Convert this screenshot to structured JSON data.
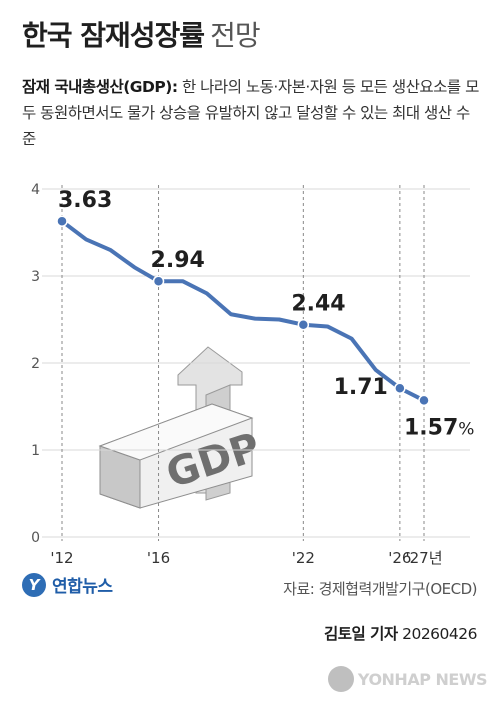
{
  "header": {
    "title_main": "한국 잠재성장률",
    "title_sub": "전망",
    "definition_term": "잠재 국내총생산(GDP):",
    "definition_text": "한 나라의 노동·자본·자원 등 모든 생산요소를 모두 동원하면서도 물가 상승을 유발하지 않고 달성할 수 있는 최대 생산 수준"
  },
  "chart_data": {
    "type": "line",
    "title": "한국 잠재성장률 전망",
    "x_unit": "년",
    "y_unit": "%",
    "ylim": [
      0,
      4
    ],
    "yticks": [
      "0",
      "1",
      "2",
      "3",
      "4"
    ],
    "xlim": [
      2012,
      2027
    ],
    "xticks": [
      {
        "value": 2012,
        "label": "'12"
      },
      {
        "value": 2016,
        "label": "'16"
      },
      {
        "value": 2022,
        "label": "'22"
      },
      {
        "value": 2026,
        "label": "'26"
      },
      {
        "value": 2027,
        "label": "'27년"
      }
    ],
    "grid": "horizontal",
    "line_color": "#4a74b5",
    "x": [
      2012,
      2013,
      2014,
      2015,
      2016,
      2017,
      2018,
      2019,
      2020,
      2021,
      2022,
      2023,
      2024,
      2025,
      2026,
      2027
    ],
    "values": [
      3.63,
      3.42,
      3.3,
      3.1,
      2.94,
      2.94,
      2.8,
      2.56,
      2.51,
      2.5,
      2.44,
      2.42,
      2.28,
      1.92,
      1.71,
      1.57
    ],
    "annotations": [
      {
        "x": 2012,
        "label": "3.63"
      },
      {
        "x": 2016,
        "label": "2.94"
      },
      {
        "x": 2022,
        "label": "2.44"
      },
      {
        "x": 2026,
        "label": "1.71"
      },
      {
        "x": 2027,
        "label": "1.57",
        "suffix": "%"
      }
    ],
    "illustration_text": "GDP"
  },
  "footer": {
    "logo_text": "연합뉴스",
    "source": "자료: 경제협력개발기구(OECD)",
    "byline_name": "김토일 기자",
    "byline_date": "20260426",
    "watermark": "YONHAP NEWS"
  },
  "colors": {
    "line": "#4a74b5",
    "logo": "#1f5da8",
    "grid": "#d9d9d9"
  }
}
